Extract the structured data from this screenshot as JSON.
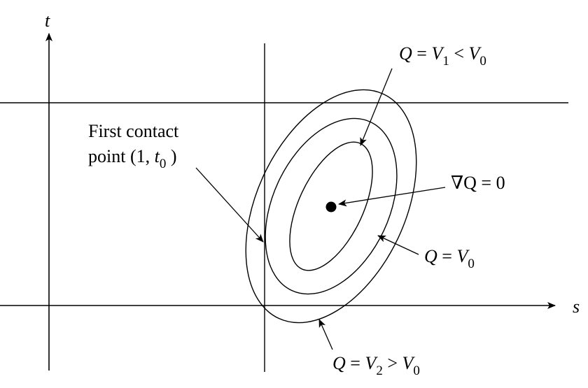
{
  "axes": {
    "x_label": "s",
    "y_label": "t"
  },
  "labels": {
    "contact_line1": "First contact",
    "contact_line2_prefix": "point (1, ",
    "contact_var": "t",
    "contact_sub": "0",
    "contact_suffix": " )",
    "gradient": "∇Q = 0",
    "inner_q": "Q",
    "inner_eq": " = ",
    "inner_v1": "V",
    "inner_v1_sub": "1",
    "inner_lt": " < ",
    "inner_v0": "V",
    "inner_v0_sub": "0",
    "mid_q": "Q",
    "mid_eq": " = ",
    "mid_v0": "V",
    "mid_v0_sub": "0",
    "outer_q": "Q",
    "outer_eq": " = ",
    "outer_v2": "V",
    "outer_v2_sub": "2",
    "outer_gt": " > ",
    "outer_v0": "V",
    "outer_v0_sub": "0"
  },
  "colors": {
    "ink": "#000000",
    "background": "#ffffff"
  }
}
